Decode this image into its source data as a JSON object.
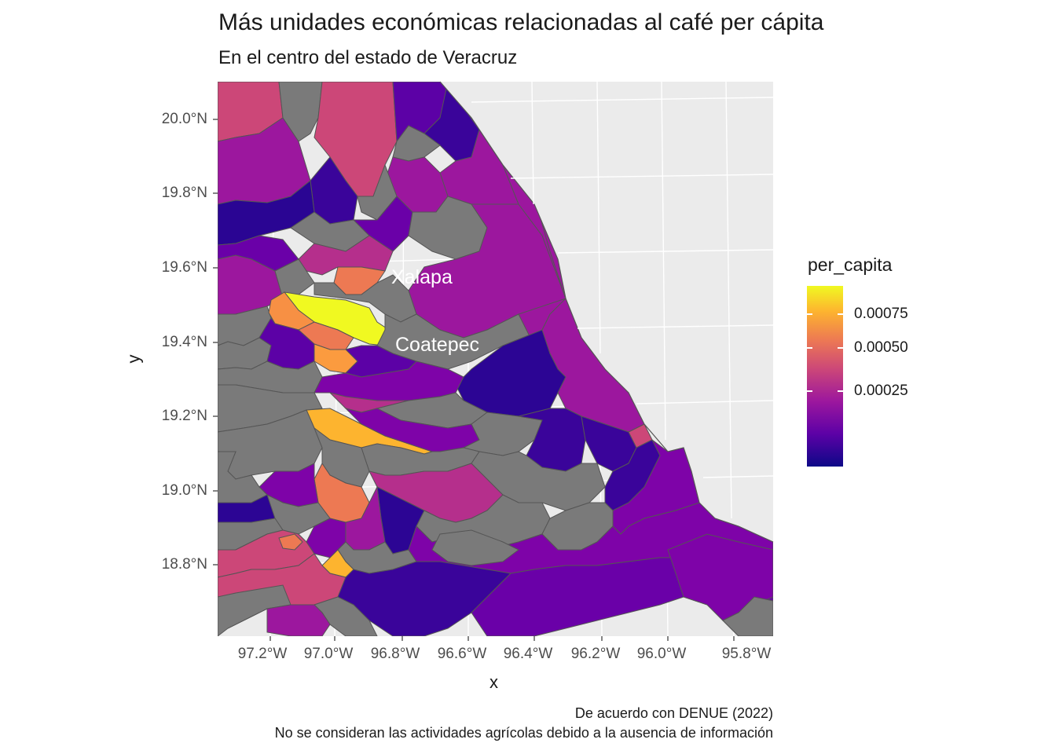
{
  "title": "Más unidades económicas relacionadas al café per cápita",
  "subtitle": "En el centro del estado de Veracruz",
  "axes": {
    "x_title": "x",
    "y_title": "y",
    "x_ticks": [
      "97.2°W",
      "97.0°W",
      "96.8°W",
      "96.6°W",
      "96.4°W",
      "96.2°W",
      "96.0°W",
      "95.8°W"
    ],
    "y_ticks": [
      "20.0°N",
      "19.8°N",
      "19.6°N",
      "19.4°N",
      "19.2°N",
      "19.0°N",
      "18.8°N"
    ]
  },
  "map": {
    "background_color": "#ebebeb",
    "missing_color": "#7a7a7a",
    "border_color": "#555555",
    "labels": [
      {
        "text": "Xalapa",
        "lon": -96.8,
        "lat": 19.55
      },
      {
        "text": "Coatepec",
        "lon": -96.78,
        "lat": 19.38
      }
    ]
  },
  "legend": {
    "title": "per_capita",
    "ticks": [
      "0.00075",
      "0.00050",
      "0.00025"
    ],
    "colors": [
      "#0d0887",
      "#5c01a6",
      "#9c179e",
      "#cc4778",
      "#ed7953",
      "#fdb42f",
      "#f0f921"
    ]
  },
  "caption": {
    "line1": "De acuerdo con DENUE (2022)",
    "line2": "No se consideran las actividades agrícolas debido a la ausencia de información"
  }
}
